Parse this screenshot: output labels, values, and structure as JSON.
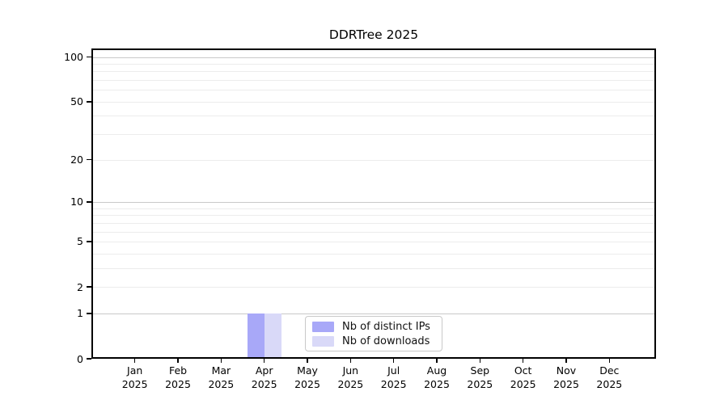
{
  "chart_data": {
    "type": "bar",
    "title": "DDRTree 2025",
    "y_scale": "log1p",
    "ylim": [
      0,
      114
    ],
    "grid": true,
    "legend_position": "inside-bottom-center",
    "y_ticks": [
      0,
      1,
      2,
      5,
      10,
      20,
      50,
      100
    ],
    "y_gridlines": {
      "minor": [
        2,
        3,
        4,
        5,
        6,
        7,
        8,
        9,
        20,
        30,
        40,
        50,
        60,
        70,
        80,
        90
      ],
      "major": [
        1,
        10,
        100
      ]
    },
    "x_ticks": [
      {
        "month": "Jan",
        "year": "2025"
      },
      {
        "month": "Feb",
        "year": "2025"
      },
      {
        "month": "Mar",
        "year": "2025"
      },
      {
        "month": "Apr",
        "year": "2025"
      },
      {
        "month": "May",
        "year": "2025"
      },
      {
        "month": "Jun",
        "year": "2025"
      },
      {
        "month": "Jul",
        "year": "2025"
      },
      {
        "month": "Aug",
        "year": "2025"
      },
      {
        "month": "Sep",
        "year": "2025"
      },
      {
        "month": "Oct",
        "year": "2025"
      },
      {
        "month": "Nov",
        "year": "2025"
      },
      {
        "month": "Dec",
        "year": "2025"
      }
    ],
    "series": [
      {
        "name": "Nb of distinct IPs",
        "color": "#a8a8f8",
        "values": [
          0,
          0,
          0,
          1,
          0,
          0,
          0,
          0,
          0,
          0,
          0,
          0
        ]
      },
      {
        "name": "Nb of downloads",
        "color": "#d9d9f8",
        "values": [
          0,
          0,
          0,
          1,
          0,
          0,
          0,
          0,
          0,
          0,
          0,
          0
        ]
      }
    ]
  },
  "colors": {
    "spine": "#000000",
    "grid_major": "#c9c9c9",
    "grid_minor": "#ececec",
    "background": "#ffffff",
    "legend_border": "#c9c9c9"
  }
}
